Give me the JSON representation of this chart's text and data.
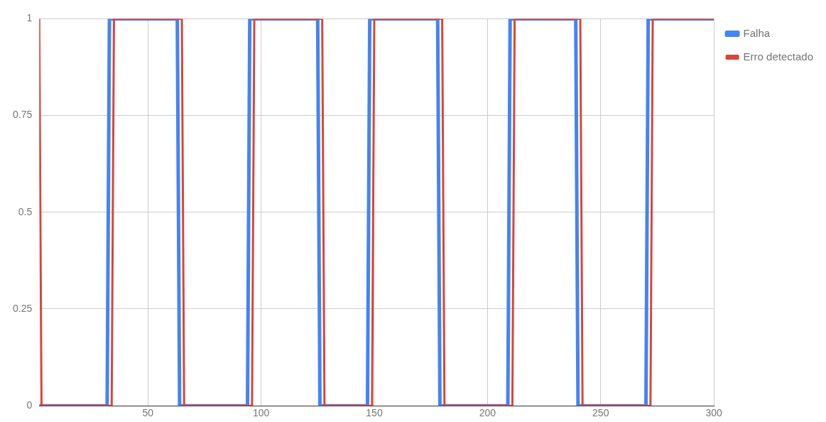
{
  "chart_data": {
    "type": "line",
    "xlim": [
      2,
      300
    ],
    "xticks": [
      50,
      100,
      150,
      200,
      250,
      300
    ],
    "ylim": [
      0,
      1
    ],
    "yticks": [
      0,
      0.25,
      0.5,
      0.75,
      1
    ],
    "grid": true,
    "legend": "top right",
    "marker": "none",
    "line_style": "solid",
    "series": [
      {
        "name": "Falha",
        "color": "#4285f4",
        "x": [
          2,
          32,
          33,
          63,
          64,
          94,
          95,
          125,
          126,
          147,
          148,
          178,
          179,
          209,
          210,
          239,
          240,
          270,
          271,
          300
        ],
        "values": [
          0,
          0,
          1,
          1,
          0,
          0,
          1,
          1,
          0,
          0,
          1,
          1,
          0,
          0,
          1,
          1,
          0,
          0,
          1,
          1
        ]
      },
      {
        "name": "Erro detectado",
        "color": "#db4437",
        "x": [
          2,
          3,
          34,
          35,
          65,
          66,
          96,
          97,
          127,
          128,
          149,
          150,
          180,
          181,
          211,
          212,
          241,
          242,
          272,
          273,
          300
        ],
        "values": [
          1,
          0,
          0,
          1,
          1,
          0,
          0,
          1,
          1,
          0,
          0,
          1,
          1,
          0,
          0,
          1,
          1,
          0,
          0,
          1,
          1
        ]
      }
    ]
  }
}
